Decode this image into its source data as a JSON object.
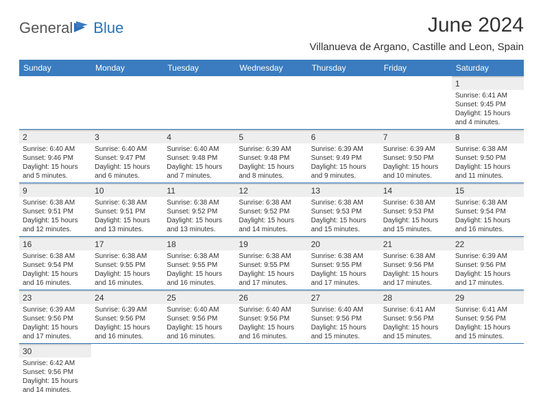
{
  "brand": {
    "text1": "General",
    "text2": "Blue"
  },
  "title": "June 2024",
  "location": "Villanueva de Argano, Castille and Leon, Spain",
  "colors": {
    "header_bg": "#3a7cbf",
    "header_text": "#ffffff",
    "accent": "#2a72b5",
    "daynum_bg": "#eeeeee",
    "text": "#333333",
    "grey_rule": "#d0d0d0"
  },
  "day_labels": [
    "Sunday",
    "Monday",
    "Tuesday",
    "Wednesday",
    "Thursday",
    "Friday",
    "Saturday"
  ],
  "weeks": [
    [
      null,
      null,
      null,
      null,
      null,
      null,
      {
        "n": "1",
        "sr": "Sunrise: 6:41 AM",
        "ss": "Sunset: 9:45 PM",
        "d1": "Daylight: 15 hours",
        "d2": "and 4 minutes."
      }
    ],
    [
      {
        "n": "2",
        "sr": "Sunrise: 6:40 AM",
        "ss": "Sunset: 9:46 PM",
        "d1": "Daylight: 15 hours",
        "d2": "and 5 minutes."
      },
      {
        "n": "3",
        "sr": "Sunrise: 6:40 AM",
        "ss": "Sunset: 9:47 PM",
        "d1": "Daylight: 15 hours",
        "d2": "and 6 minutes."
      },
      {
        "n": "4",
        "sr": "Sunrise: 6:40 AM",
        "ss": "Sunset: 9:48 PM",
        "d1": "Daylight: 15 hours",
        "d2": "and 7 minutes."
      },
      {
        "n": "5",
        "sr": "Sunrise: 6:39 AM",
        "ss": "Sunset: 9:48 PM",
        "d1": "Daylight: 15 hours",
        "d2": "and 8 minutes."
      },
      {
        "n": "6",
        "sr": "Sunrise: 6:39 AM",
        "ss": "Sunset: 9:49 PM",
        "d1": "Daylight: 15 hours",
        "d2": "and 9 minutes."
      },
      {
        "n": "7",
        "sr": "Sunrise: 6:39 AM",
        "ss": "Sunset: 9:50 PM",
        "d1": "Daylight: 15 hours",
        "d2": "and 10 minutes."
      },
      {
        "n": "8",
        "sr": "Sunrise: 6:38 AM",
        "ss": "Sunset: 9:50 PM",
        "d1": "Daylight: 15 hours",
        "d2": "and 11 minutes."
      }
    ],
    [
      {
        "n": "9",
        "sr": "Sunrise: 6:38 AM",
        "ss": "Sunset: 9:51 PM",
        "d1": "Daylight: 15 hours",
        "d2": "and 12 minutes."
      },
      {
        "n": "10",
        "sr": "Sunrise: 6:38 AM",
        "ss": "Sunset: 9:51 PM",
        "d1": "Daylight: 15 hours",
        "d2": "and 13 minutes."
      },
      {
        "n": "11",
        "sr": "Sunrise: 6:38 AM",
        "ss": "Sunset: 9:52 PM",
        "d1": "Daylight: 15 hours",
        "d2": "and 13 minutes."
      },
      {
        "n": "12",
        "sr": "Sunrise: 6:38 AM",
        "ss": "Sunset: 9:52 PM",
        "d1": "Daylight: 15 hours",
        "d2": "and 14 minutes."
      },
      {
        "n": "13",
        "sr": "Sunrise: 6:38 AM",
        "ss": "Sunset: 9:53 PM",
        "d1": "Daylight: 15 hours",
        "d2": "and 15 minutes."
      },
      {
        "n": "14",
        "sr": "Sunrise: 6:38 AM",
        "ss": "Sunset: 9:53 PM",
        "d1": "Daylight: 15 hours",
        "d2": "and 15 minutes."
      },
      {
        "n": "15",
        "sr": "Sunrise: 6:38 AM",
        "ss": "Sunset: 9:54 PM",
        "d1": "Daylight: 15 hours",
        "d2": "and 16 minutes."
      }
    ],
    [
      {
        "n": "16",
        "sr": "Sunrise: 6:38 AM",
        "ss": "Sunset: 9:54 PM",
        "d1": "Daylight: 15 hours",
        "d2": "and 16 minutes."
      },
      {
        "n": "17",
        "sr": "Sunrise: 6:38 AM",
        "ss": "Sunset: 9:55 PM",
        "d1": "Daylight: 15 hours",
        "d2": "and 16 minutes."
      },
      {
        "n": "18",
        "sr": "Sunrise: 6:38 AM",
        "ss": "Sunset: 9:55 PM",
        "d1": "Daylight: 15 hours",
        "d2": "and 16 minutes."
      },
      {
        "n": "19",
        "sr": "Sunrise: 6:38 AM",
        "ss": "Sunset: 9:55 PM",
        "d1": "Daylight: 15 hours",
        "d2": "and 17 minutes."
      },
      {
        "n": "20",
        "sr": "Sunrise: 6:38 AM",
        "ss": "Sunset: 9:55 PM",
        "d1": "Daylight: 15 hours",
        "d2": "and 17 minutes."
      },
      {
        "n": "21",
        "sr": "Sunrise: 6:38 AM",
        "ss": "Sunset: 9:56 PM",
        "d1": "Daylight: 15 hours",
        "d2": "and 17 minutes."
      },
      {
        "n": "22",
        "sr": "Sunrise: 6:39 AM",
        "ss": "Sunset: 9:56 PM",
        "d1": "Daylight: 15 hours",
        "d2": "and 17 minutes."
      }
    ],
    [
      {
        "n": "23",
        "sr": "Sunrise: 6:39 AM",
        "ss": "Sunset: 9:56 PM",
        "d1": "Daylight: 15 hours",
        "d2": "and 17 minutes."
      },
      {
        "n": "24",
        "sr": "Sunrise: 6:39 AM",
        "ss": "Sunset: 9:56 PM",
        "d1": "Daylight: 15 hours",
        "d2": "and 16 minutes."
      },
      {
        "n": "25",
        "sr": "Sunrise: 6:40 AM",
        "ss": "Sunset: 9:56 PM",
        "d1": "Daylight: 15 hours",
        "d2": "and 16 minutes."
      },
      {
        "n": "26",
        "sr": "Sunrise: 6:40 AM",
        "ss": "Sunset: 9:56 PM",
        "d1": "Daylight: 15 hours",
        "d2": "and 16 minutes."
      },
      {
        "n": "27",
        "sr": "Sunrise: 6:40 AM",
        "ss": "Sunset: 9:56 PM",
        "d1": "Daylight: 15 hours",
        "d2": "and 15 minutes."
      },
      {
        "n": "28",
        "sr": "Sunrise: 6:41 AM",
        "ss": "Sunset: 9:56 PM",
        "d1": "Daylight: 15 hours",
        "d2": "and 15 minutes."
      },
      {
        "n": "29",
        "sr": "Sunrise: 6:41 AM",
        "ss": "Sunset: 9:56 PM",
        "d1": "Daylight: 15 hours",
        "d2": "and 15 minutes."
      }
    ],
    [
      {
        "n": "30",
        "sr": "Sunrise: 6:42 AM",
        "ss": "Sunset: 9:56 PM",
        "d1": "Daylight: 15 hours",
        "d2": "and 14 minutes."
      },
      null,
      null,
      null,
      null,
      null,
      null
    ]
  ]
}
